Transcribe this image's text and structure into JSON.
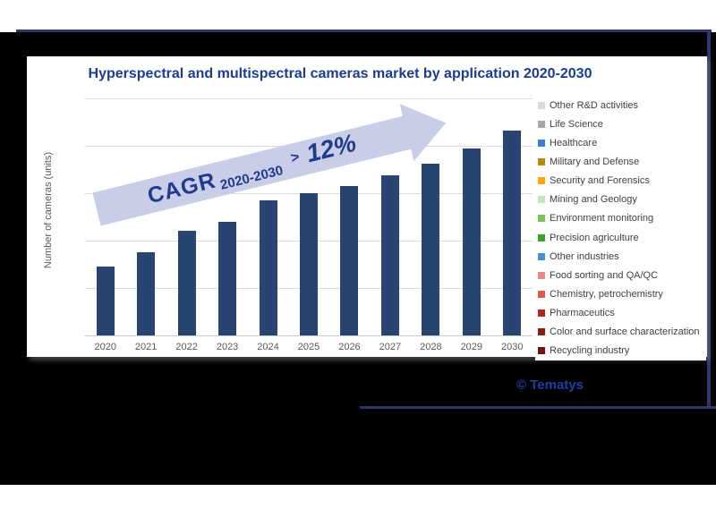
{
  "chart": {
    "title": "Hyperspectral and multispectral cameras market by application 2020-2030",
    "ylabel": "Number of cameras (units)",
    "annotation": {
      "cagr_label": "CAGR",
      "range": "2020-2030",
      "comparator": ">",
      "value": "12%"
    },
    "legend": [
      {
        "label": "Other R&D activities",
        "color": "#D9D9D9"
      },
      {
        "label": "Life Science",
        "color": "#A6A6A6"
      },
      {
        "label": "Healthcare",
        "color": "#3B7DC8"
      },
      {
        "label": "Military and Defense",
        "color": "#B58A00"
      },
      {
        "label": "Security and Forensics",
        "color": "#FBA70C"
      },
      {
        "label": "Mining and Geology",
        "color": "#C9E3B8"
      },
      {
        "label": "Environment monitoring",
        "color": "#77C353"
      },
      {
        "label": "Precision agriculture",
        "color": "#3AA426"
      },
      {
        "label": "Other industries",
        "color": "#4A8FD3"
      },
      {
        "label": "Food sorting and QA/QC",
        "color": "#EC8888"
      },
      {
        "label": "Chemistry, petrochemistry",
        "color": "#E25353"
      },
      {
        "label": "Pharmaceutics",
        "color": "#B32420"
      },
      {
        "label": "Color and surface characterization",
        "color": "#8E1B14"
      },
      {
        "label": "Recycling industry",
        "color": "#6E130E"
      }
    ]
  },
  "chart_data": {
    "type": "bar",
    "title": "Hyperspectral and multispectral cameras market by application 2020-2030",
    "xlabel": "",
    "ylabel": "Number of cameras (units)",
    "categories": [
      "2020",
      "2021",
      "2022",
      "2023",
      "2024",
      "2025",
      "2026",
      "2027",
      "2028",
      "2029",
      "2030"
    ],
    "values": [
      145,
      175,
      220,
      240,
      285,
      300,
      315,
      337,
      363,
      395,
      433
    ],
    "values_note": "estimated relative units; y axis shows no numeric tick labels",
    "ylim": [
      0,
      500
    ],
    "gridlines": 6,
    "grid": true,
    "legend_position": "right",
    "annotation": "CAGR 2020-2030 > 12%"
  },
  "footer": {
    "copyright": "© Tematys"
  },
  "colors": {
    "bar": "#284571",
    "arrow_fill": "#C9CDE7",
    "annotation_text": "#1F3C8C",
    "title": "#1B3C94",
    "copyright": "#1D3FA4",
    "frame_line": "#303669",
    "axis_text": "#595959",
    "legend_text": "#404040",
    "gridline": "#DCDCDC",
    "baseline": "#C9C9C9",
    "card_bg": "#FFFFFF",
    "backdrop": "#000000"
  }
}
